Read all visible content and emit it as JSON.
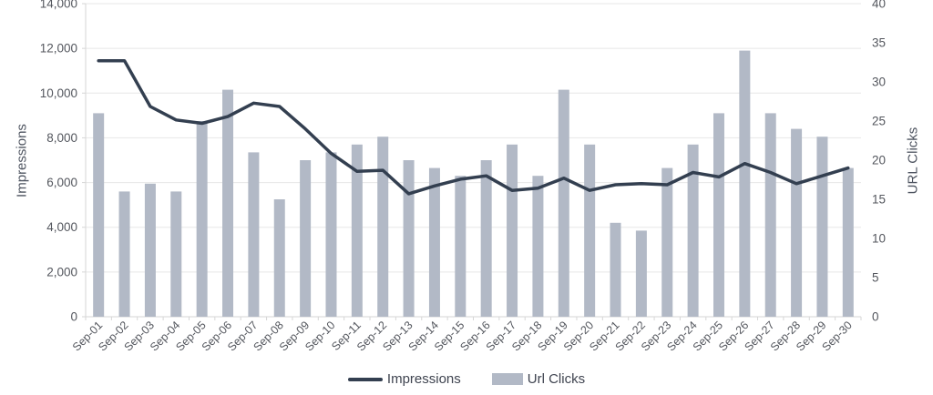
{
  "chart_data": {
    "type": "combo",
    "categories": [
      "Sep-01",
      "Sep-02",
      "Sep-03",
      "Sep-04",
      "Sep-05",
      "Sep-06",
      "Sep-07",
      "Sep-08",
      "Sep-09",
      "Sep-10",
      "Sep-11",
      "Sep-12",
      "Sep-13",
      "Sep-14",
      "Sep-15",
      "Sep-16",
      "Sep-17",
      "Sep-18",
      "Sep-19",
      "Sep-20",
      "Sep-21",
      "Sep-22",
      "Sep-23",
      "Sep-24",
      "Sep-25",
      "Sep-26",
      "Sep-27",
      "Sep-28",
      "Sep-29",
      "Sep-30"
    ],
    "series": [
      {
        "name": "Impressions",
        "type": "line",
        "axis": "left",
        "color": "#333f50",
        "values": [
          11450,
          11450,
          9400,
          8800,
          8650,
          8950,
          9550,
          9400,
          8400,
          7300,
          6500,
          6550,
          5500,
          5850,
          6150,
          6300,
          5650,
          5750,
          6200,
          5650,
          5900,
          5950,
          5900,
          6450,
          6250,
          6850,
          6450,
          5950,
          6300,
          6650
        ]
      },
      {
        "name": "Url Clicks",
        "type": "bar",
        "axis": "right",
        "color": "#b2b9c6",
        "values": [
          26,
          16,
          17,
          16,
          25,
          29,
          21,
          15,
          20,
          21,
          22,
          23,
          20,
          19,
          18,
          20,
          22,
          18,
          29,
          22,
          12,
          11,
          19,
          22,
          26,
          34,
          26,
          24,
          23,
          19
        ]
      }
    ],
    "left_axis": {
      "title": "Impressions",
      "min": 0,
      "max": 14000,
      "step": 2000
    },
    "right_axis": {
      "title": "URL Clicks",
      "min": 0,
      "max": 40,
      "step": 5
    },
    "legend": {
      "position": "bottom",
      "items": [
        {
          "label": "Impressions",
          "swatch": "line"
        },
        {
          "label": "Url Clicks",
          "swatch": "bar"
        }
      ]
    },
    "grid": true,
    "styles": {
      "gridline_color": "#e7e7e7",
      "axis_line_color": "#d6d6d6",
      "tick_label_color": "#54575e",
      "background": "#ffffff"
    }
  }
}
